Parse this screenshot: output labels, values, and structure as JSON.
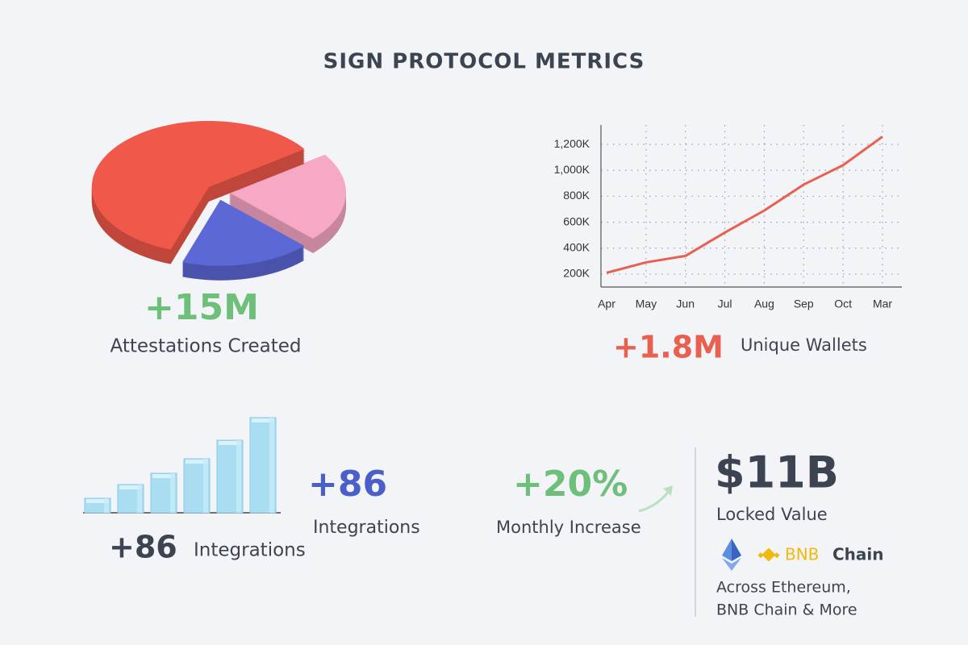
{
  "title": "SIGN PROTOCOL METRICS",
  "chart_data": [
    {
      "type": "pie",
      "values": [
        60,
        22,
        18
      ],
      "colors": [
        "#f0584a",
        "#f7a8c4",
        "#5c68d6"
      ]
    },
    {
      "type": "line",
      "categories": [
        "Apr",
        "May",
        "Jun",
        "Jul",
        "Aug",
        "Sep",
        "Oct",
        "Mar"
      ],
      "values": [
        210000,
        290000,
        340000,
        520000,
        690000,
        890000,
        1040000,
        1260000
      ],
      "color": "#e8604f",
      "ylim": [
        100000,
        1350000
      ],
      "yticks": [
        {
          "value": 200000,
          "label": "200K"
        },
        {
          "value": 400000,
          "label": "400K"
        },
        {
          "value": 600000,
          "label": "600K"
        },
        {
          "value": 800000,
          "label": "800K"
        },
        {
          "value": 1000000,
          "label": "1,000K"
        },
        {
          "value": 1200000,
          "label": "1,200K"
        }
      ],
      "grid": true
    },
    {
      "type": "bar",
      "values": [
        18,
        35,
        49,
        67,
        90,
        118
      ],
      "color": "#a9def2"
    }
  ],
  "stats": {
    "attestations": {
      "value": "+15M",
      "label": "Attestations Created"
    },
    "wallets": {
      "value": "+1.8M",
      "label": "Unique Wallets"
    },
    "integrations_side": {
      "value": "+86",
      "label": "Integrations"
    },
    "integrations_below": {
      "value": "+86",
      "label": "Integrations"
    },
    "monthly": {
      "value": "+20%",
      "label": "Monthly Increase"
    },
    "locked": {
      "value": "$11B",
      "label": "Locked Value",
      "logo_mark": "BNB",
      "logo_word": "Chain",
      "note_line1": "Across Ethereum,",
      "note_line2": "BNB Chain & More"
    }
  }
}
